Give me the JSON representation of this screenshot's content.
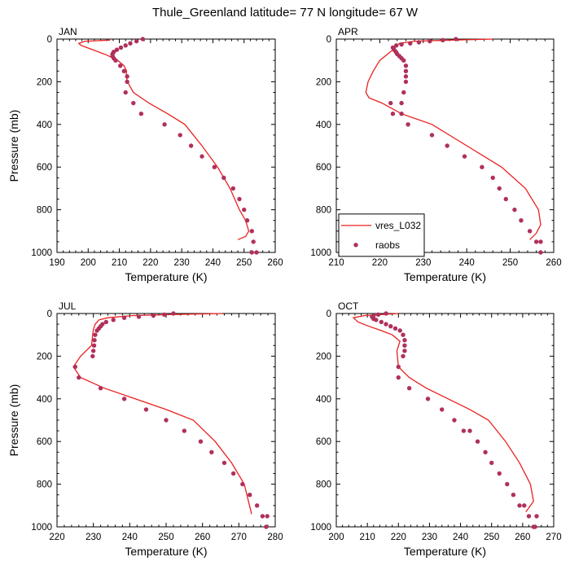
{
  "title": "Thule_Greenland  latitude= 77 N longitude= 67 W",
  "colors": {
    "model": "#e8211f",
    "obs": "#b0305c"
  },
  "legend": {
    "model": "vres_L032",
    "obs": "raobs"
  },
  "chart_data": [
    {
      "type": "line",
      "panel": "JAN",
      "xlabel": "Temperature (K)",
      "ylabel": "Pressure (mb)",
      "xlim": [
        190,
        260
      ],
      "ylim": [
        1000,
        0
      ],
      "xticks": [
        "190",
        "200",
        "210",
        "220",
        "230",
        "240",
        "250",
        "260"
      ],
      "yticks": [
        "0",
        "200",
        "400",
        "600",
        "800",
        "1000"
      ],
      "series": [
        {
          "name": "vres_L032",
          "style": "line",
          "x": [
            207.0,
            199.0,
            197.0,
            197.8,
            201.5,
            206.0,
            209.5,
            211.5,
            212.3,
            212.2,
            212.6,
            214.5,
            219.5,
            225.5,
            231.0,
            236.5,
            241.5,
            245.5,
            248.5,
            250.5,
            251.5,
            250.5,
            248.0
          ],
          "y": [
            5,
            10,
            20,
            30,
            50,
            75,
            100,
            125,
            150,
            175,
            200,
            250,
            300,
            350,
            400,
            500,
            600,
            700,
            800,
            850,
            900,
            925,
            940
          ]
        },
        {
          "name": "raobs",
          "style": "markers",
          "x": [
            217.5,
            215.5,
            213.5,
            212.0,
            210.5,
            209.2,
            208.2,
            207.8,
            207.8,
            208.2,
            208.8,
            210.3,
            211.5,
            212.5,
            212.5,
            212.0,
            214.5,
            217.0,
            224.5,
            229.5,
            233.0,
            236.5,
            240.5,
            243.5,
            246.5,
            248.5,
            250.0,
            251.0,
            252.5,
            253.0,
            254.0,
            252.5
          ],
          "y": [
            0,
            10,
            20,
            30,
            40,
            50,
            60,
            70,
            80,
            90,
            100,
            125,
            150,
            175,
            200,
            250,
            300,
            350,
            400,
            450,
            500,
            550,
            600,
            650,
            700,
            750,
            800,
            850,
            900,
            950,
            1000,
            1000
          ]
        }
      ]
    },
    {
      "type": "line",
      "panel": "APR",
      "xlabel": "Temperature (K)",
      "ylabel": "",
      "xlim": [
        210,
        260
      ],
      "ylim": [
        1000,
        0
      ],
      "xticks": [
        "210",
        "220",
        "230",
        "240",
        "250",
        "260"
      ],
      "yticks": [
        "0",
        "200",
        "400",
        "600",
        "800",
        "1000"
      ],
      "legend_position": "bottom-left",
      "series": [
        {
          "name": "vres_L032",
          "style": "line",
          "x": [
            246.0,
            236.0,
            228.0,
            224.5,
            223.0,
            221.5,
            220.0,
            218.5,
            217.3,
            216.8,
            217.5,
            220.5,
            225.0,
            232.0,
            240.0,
            248.0,
            253.5,
            256.5,
            257.0,
            256.0,
            254.5
          ],
          "y": [
            0,
            5,
            10,
            20,
            50,
            75,
            100,
            150,
            200,
            250,
            275,
            300,
            350,
            400,
            500,
            600,
            700,
            800,
            870,
            910,
            940
          ]
        },
        {
          "name": "raobs",
          "style": "markers",
          "x": [
            237.5,
            234.5,
            231.5,
            229.0,
            227.0,
            225.0,
            223.8,
            223.0,
            223.3,
            223.7,
            224.0,
            224.5,
            225.0,
            225.5,
            226.0,
            226.0,
            226.0,
            226.0,
            225.5,
            225.0,
            225.0,
            222.5,
            223.0,
            226.5,
            232.0,
            235.5,
            239.5,
            243.5,
            246.0,
            247.5,
            249.0,
            251.0,
            252.5,
            254.5,
            256.0,
            257.0,
            257.0
          ],
          "y": [
            0,
            5,
            10,
            15,
            20,
            25,
            30,
            40,
            50,
            60,
            70,
            80,
            90,
            100,
            125,
            150,
            175,
            200,
            250,
            300,
            350,
            300,
            350,
            400,
            450,
            500,
            550,
            600,
            650,
            700,
            750,
            800,
            850,
            900,
            950,
            1000,
            950
          ]
        }
      ]
    },
    {
      "type": "line",
      "panel": "JUL",
      "xlabel": "Temperature (K)",
      "ylabel": "Pressure (mb)",
      "xlim": [
        220,
        280
      ],
      "ylim": [
        1000,
        0
      ],
      "xticks": [
        "220",
        "230",
        "240",
        "250",
        "260",
        "270",
        "280"
      ],
      "yticks": [
        "0",
        "200",
        "400",
        "600",
        "800",
        "1000"
      ],
      "series": [
        {
          "name": "vres_L032",
          "style": "line",
          "x": [
            265.5,
            251.0,
            240.5,
            234.0,
            231.5,
            230.5,
            230.0,
            229.8,
            229.5,
            226.5,
            224.5,
            226.5,
            233.0,
            241.5,
            250.0,
            257.5,
            263.5,
            268.0,
            271.5,
            273.5
          ],
          "y": [
            0,
            5,
            10,
            20,
            30,
            50,
            75,
            100,
            150,
            200,
            250,
            300,
            350,
            400,
            450,
            500,
            600,
            700,
            800,
            940
          ]
        },
        {
          "name": "raobs",
          "style": "markers",
          "x": [
            252.0,
            249.5,
            246.5,
            242.5,
            238.5,
            235.5,
            233.5,
            232.5,
            232.0,
            231.5,
            231.0,
            230.5,
            230.3,
            230.2,
            230.0,
            229.8,
            225.0,
            226.0,
            232.0,
            238.5,
            244.5,
            250.0,
            255.0,
            259.5,
            262.5,
            266.0,
            268.5,
            271.0,
            273.0,
            275.0,
            276.5,
            277.5,
            277.8
          ],
          "y": [
            0,
            5,
            10,
            15,
            20,
            30,
            40,
            50,
            60,
            70,
            80,
            100,
            125,
            150,
            175,
            200,
            250,
            300,
            350,
            400,
            450,
            500,
            550,
            600,
            650,
            700,
            750,
            800,
            850,
            900,
            950,
            1000,
            950
          ]
        }
      ]
    },
    {
      "type": "line",
      "panel": "OCT",
      "xlabel": "Temperature (K)",
      "ylabel": "",
      "xlim": [
        200,
        270
      ],
      "ylim": [
        1000,
        0
      ],
      "xticks": [
        "200",
        "210",
        "220",
        "230",
        "240",
        "250",
        "260",
        "270"
      ],
      "yticks": [
        "0",
        "200",
        "400",
        "600",
        "800",
        "1000"
      ],
      "series": [
        {
          "name": "vres_L032",
          "style": "line",
          "x": [
            220.0,
            214.5,
            209.0,
            205.5,
            207.0,
            210.5,
            214.5,
            218.0,
            220.5,
            219.5,
            220.0,
            223.5,
            229.0,
            236.0,
            243.0,
            249.0,
            254.5,
            259.0,
            262.5,
            263.5,
            261.0
          ],
          "y": [
            0,
            5,
            10,
            20,
            40,
            60,
            80,
            100,
            130,
            175,
            250,
            300,
            350,
            400,
            450,
            500,
            600,
            700,
            800,
            880,
            930
          ]
        },
        {
          "name": "raobs",
          "style": "markers",
          "x": [
            216.0,
            213.5,
            212.0,
            211.5,
            211.8,
            212.0,
            212.8,
            214.5,
            216.0,
            217.5,
            219.0,
            220.5,
            221.5,
            222.0,
            222.0,
            222.0,
            221.5,
            220.0,
            220.0,
            223.5,
            229.5,
            234.0,
            238.0,
            241.0,
            243.0,
            245.5,
            248.0,
            250.0,
            252.5,
            255.0,
            257.0,
            259.0,
            260.5,
            262.0,
            263.5,
            264.0,
            264.5
          ],
          "y": [
            0,
            5,
            10,
            15,
            20,
            25,
            30,
            40,
            50,
            60,
            70,
            80,
            100,
            125,
            150,
            175,
            200,
            250,
            300,
            350,
            400,
            450,
            500,
            550,
            550,
            600,
            650,
            700,
            750,
            800,
            850,
            900,
            900,
            950,
            1000,
            1000,
            950
          ]
        }
      ]
    }
  ]
}
